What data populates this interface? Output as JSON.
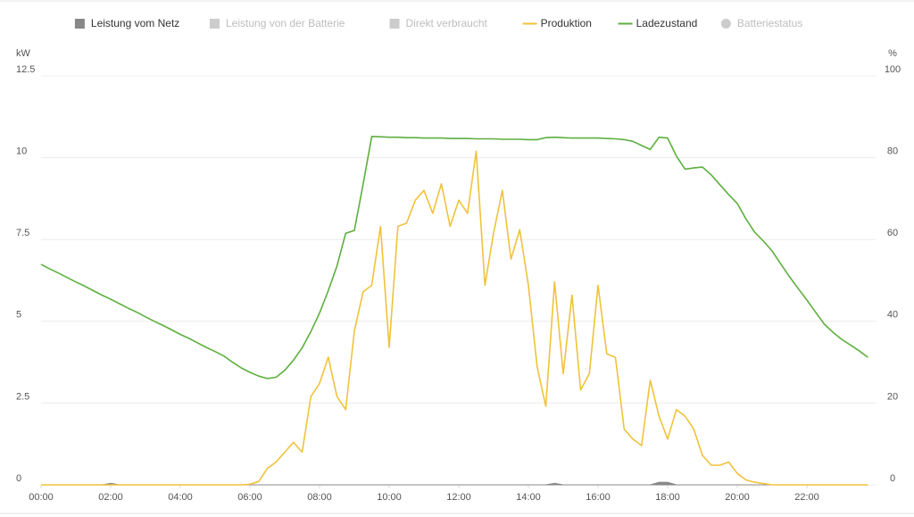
{
  "chart_data": {
    "type": "line",
    "legend_position": "top",
    "grid": true,
    "y_unit": "kW",
    "y2_unit": "%",
    "xlim": [
      0,
      24
    ],
    "xticks": [
      {
        "value": 0,
        "label": "00:00"
      },
      {
        "value": 2,
        "label": "02:00"
      },
      {
        "value": 4,
        "label": "04:00"
      },
      {
        "value": 6,
        "label": "06:00"
      },
      {
        "value": 8,
        "label": "08:00"
      },
      {
        "value": 10,
        "label": "10:00"
      },
      {
        "value": 12,
        "label": "12:00"
      },
      {
        "value": 14,
        "label": "14:00"
      },
      {
        "value": 16,
        "label": "16:00"
      },
      {
        "value": 18,
        "label": "18:00"
      },
      {
        "value": 20,
        "label": "20:00"
      },
      {
        "value": 22,
        "label": "22:00"
      }
    ],
    "ylim": [
      0,
      12.5
    ],
    "yticks": [
      0,
      2.5,
      5,
      7.5,
      10,
      12.5
    ],
    "y2lim": [
      0,
      100
    ],
    "y2ticks": [
      0,
      20,
      40,
      60,
      80,
      100
    ],
    "x": [
      0,
      0.25,
      0.5,
      0.75,
      1,
      1.25,
      1.5,
      1.75,
      2,
      2.25,
      2.5,
      2.75,
      3,
      3.25,
      3.5,
      3.75,
      4,
      4.25,
      4.5,
      4.75,
      5,
      5.25,
      5.5,
      5.75,
      6,
      6.25,
      6.5,
      6.75,
      7,
      7.25,
      7.5,
      7.75,
      8,
      8.25,
      8.5,
      8.75,
      9,
      9.25,
      9.5,
      9.75,
      10,
      10.25,
      10.5,
      10.75,
      11,
      11.25,
      11.5,
      11.75,
      12,
      12.25,
      12.5,
      12.75,
      13,
      13.25,
      13.5,
      13.75,
      14,
      14.25,
      14.5,
      14.75,
      15,
      15.25,
      15.5,
      15.75,
      16,
      16.25,
      16.5,
      16.75,
      17,
      17.25,
      17.5,
      17.75,
      18,
      18.25,
      18.5,
      18.75,
      19,
      19.25,
      19.5,
      19.75,
      20,
      20.25,
      20.5,
      20.75,
      21,
      21.25,
      21.5,
      21.75,
      22,
      22.25,
      22.5,
      22.75,
      23,
      23.25,
      23.5,
      23.75
    ],
    "series": [
      {
        "name": "Leistung vom Netz",
        "color": "#888888",
        "marker": "square",
        "style": "area",
        "values": [
          0,
          0,
          0,
          0,
          0,
          0,
          0,
          0,
          0.05,
          0,
          0,
          0,
          0,
          0,
          0,
          0,
          0,
          0,
          0,
          0,
          0,
          0,
          0,
          0,
          0,
          0,
          0,
          0,
          0,
          0,
          0,
          0,
          0,
          0,
          0,
          0,
          0,
          0,
          0,
          0,
          0,
          0,
          0,
          0,
          0,
          0,
          0,
          0,
          0,
          0,
          0,
          0,
          0,
          0,
          0,
          0,
          0,
          0,
          0,
          0.05,
          0,
          0,
          0,
          0,
          0,
          0,
          0,
          0,
          0,
          0,
          0,
          0.08,
          0.08,
          0,
          0,
          0,
          0,
          0,
          0,
          0,
          0,
          0,
          0,
          0,
          0,
          0,
          0,
          0,
          0,
          0,
          0,
          0,
          0,
          0,
          0,
          0
        ]
      },
      {
        "name": "Leistung von der Batterie",
        "color": "#cccccc",
        "marker": "square",
        "hidden": true
      },
      {
        "name": "Direkt verbraucht",
        "color": "#cccccc",
        "marker": "square",
        "hidden": true
      },
      {
        "name": "Produktion",
        "color": "#f0c23b",
        "marker": "line",
        "values": [
          0,
          0,
          0,
          0,
          0,
          0,
          0,
          0,
          0,
          0,
          0,
          0,
          0,
          0,
          0,
          0,
          0,
          0,
          0,
          0,
          0,
          0,
          0,
          0,
          0.02,
          0.1,
          0.5,
          0.7,
          1.0,
          1.3,
          1.0,
          2.7,
          3.1,
          3.9,
          2.7,
          2.3,
          4.7,
          5.9,
          6.1,
          7.9,
          4.2,
          7.9,
          8.0,
          8.7,
          9.0,
          8.3,
          9.2,
          7.9,
          8.7,
          8.3,
          10.2,
          6.1,
          7.7,
          9.0,
          6.9,
          7.8,
          6.1,
          3.6,
          2.4,
          6.2,
          3.4,
          5.8,
          2.9,
          3.4,
          6.1,
          4.0,
          3.9,
          1.7,
          1.4,
          1.2,
          3.2,
          2.1,
          1.4,
          2.3,
          2.1,
          1.7,
          0.9,
          0.6,
          0.6,
          0.7,
          0.35,
          0.15,
          0.08,
          0.04,
          0,
          0,
          0,
          0,
          0,
          0,
          0,
          0,
          0,
          0,
          0,
          0
        ]
      },
      {
        "name": "Ladezustand",
        "color": "#5daf3f",
        "marker": "line",
        "axis": "y2",
        "values": [
          53.9,
          52.8,
          51.8,
          50.7,
          49.6,
          48.6,
          47.5,
          46.4,
          45.4,
          44.3,
          43.2,
          42.2,
          41.1,
          40.0,
          39.0,
          37.9,
          36.8,
          35.8,
          34.7,
          33.6,
          32.6,
          31.5,
          30.0,
          28.6,
          27.5,
          26.6,
          26.0,
          26.3,
          28.0,
          30.5,
          33.5,
          37.5,
          42,
          47.5,
          53.5,
          61.5,
          62.2,
          73.5,
          85.2,
          85.1,
          85.0,
          85.0,
          84.9,
          84.9,
          84.8,
          84.8,
          84.8,
          84.7,
          84.7,
          84.7,
          84.6,
          84.6,
          84.6,
          84.5,
          84.5,
          84.5,
          84.4,
          84.4,
          84.9,
          85.0,
          84.9,
          84.8,
          84.8,
          84.8,
          84.8,
          84.7,
          84.6,
          84.4,
          84.0,
          83.0,
          82.0,
          85.0,
          84.8,
          80.4,
          77.2,
          77.5,
          77.7,
          75.8,
          73.4,
          71.0,
          68.8,
          65.0,
          61.8,
          59.6,
          57.2,
          54.0,
          50.9,
          48.0,
          45.2,
          42.2,
          39.3,
          37.3,
          35.6,
          34.2,
          32.8,
          31.2
        ]
      },
      {
        "name": "Batteriestatus",
        "color": "#cccccc",
        "marker": "circle",
        "hidden": true
      }
    ]
  }
}
